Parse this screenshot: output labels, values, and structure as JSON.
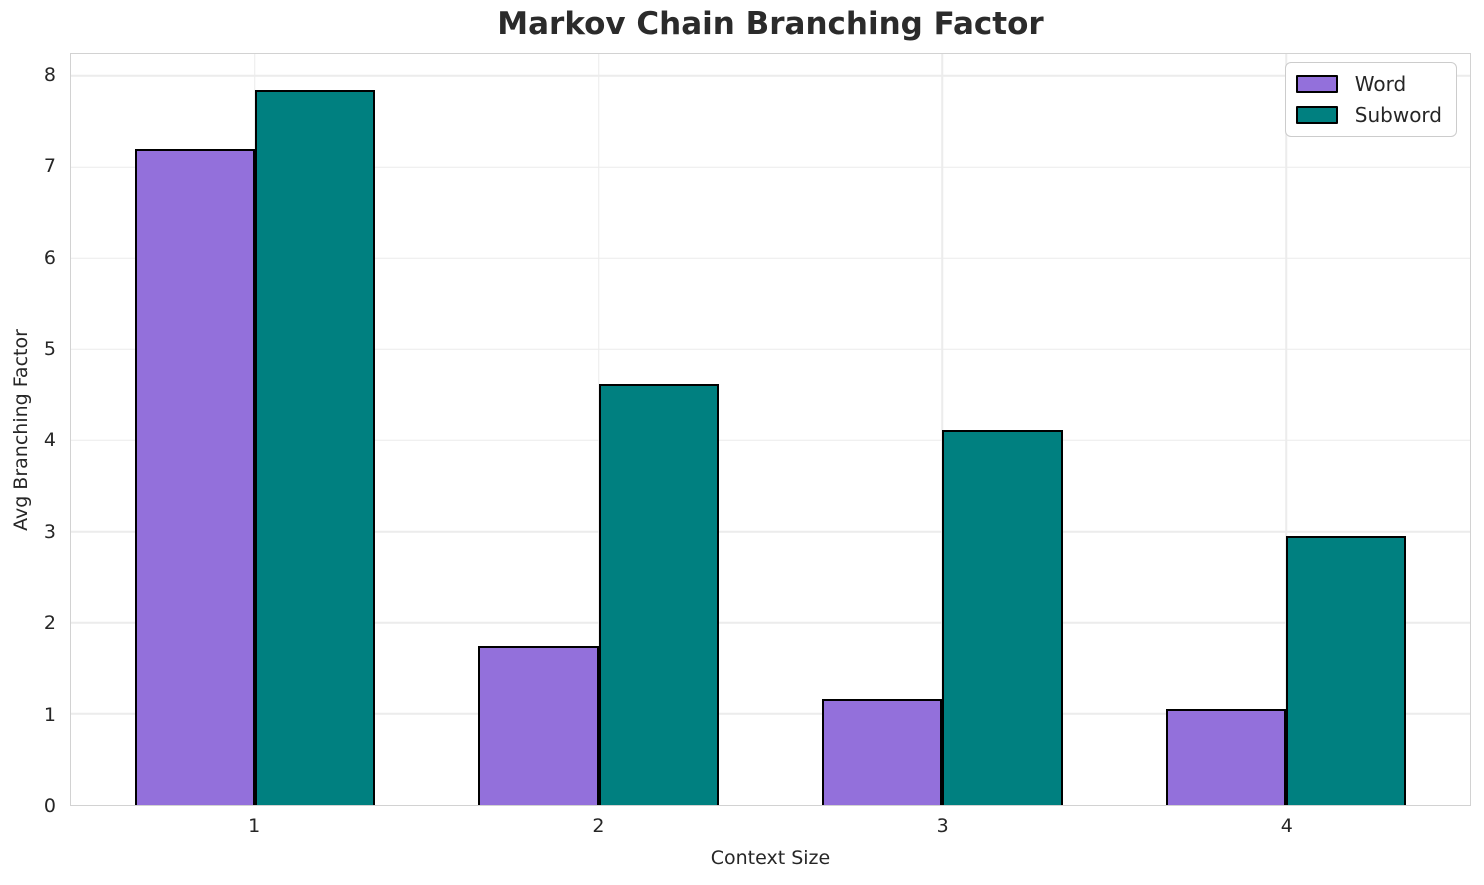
{
  "title": "Markov Chain Branching Factor",
  "chart_data": {
    "type": "bar",
    "title": "Markov Chain Branching Factor",
    "xlabel": "Context Size",
    "ylabel": "Avg Branching Factor",
    "categories": [
      "1",
      "2",
      "3",
      "4"
    ],
    "x_positions": [
      1,
      2,
      3,
      4
    ],
    "series": [
      {
        "name": "Word",
        "color": "#9370db",
        "values": [
          7.2,
          1.74,
          1.16,
          1.05
        ]
      },
      {
        "name": "Subword",
        "color": "#008080",
        "values": [
          7.85,
          4.62,
          4.12,
          2.95
        ]
      }
    ],
    "bar_width": 0.35,
    "bar_edge_color": "#000000",
    "xlim": [
      0.465,
      4.535
    ],
    "ylim": [
      0,
      8.24
    ],
    "yticks": [
      0,
      1,
      2,
      3,
      4,
      5,
      6,
      7,
      8
    ],
    "grid": true,
    "legend_position": "upper right"
  },
  "styles": {
    "grid_color": "#ececec",
    "spine_color": "#d2d2d2",
    "text_color": "#262626",
    "title_color": "#2b2b2b",
    "background": "#ffffff"
  }
}
